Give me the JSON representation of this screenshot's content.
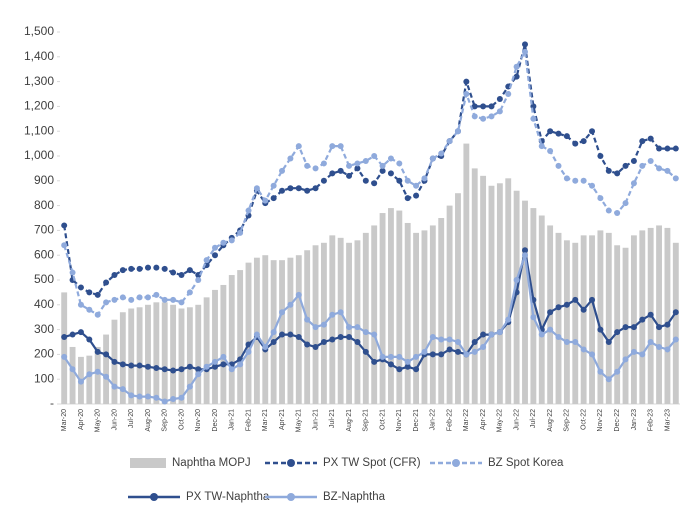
{
  "chart_data": {
    "type": "combo",
    "categories": [
      "Mar-20",
      null,
      "Apr-20",
      null,
      "May-20",
      null,
      "Jun-20",
      null,
      "Jul-20",
      null,
      "Aug-20",
      null,
      "Sep-20",
      null,
      "Oct-20",
      null,
      "Nov-20",
      null,
      "Dec-20",
      null,
      "Jan-21",
      null,
      "Feb-21",
      null,
      "Mar-21",
      null,
      "Apr-21",
      null,
      "May-21",
      null,
      "Jun-21",
      null,
      "Jul-21",
      null,
      "Aug-21",
      null,
      "Sep-21",
      null,
      "Oct-21",
      null,
      "Nov-21",
      null,
      "Dec-21",
      null,
      "Jan-22",
      null,
      "Feb-22",
      null,
      "Mar-22",
      null,
      "Apr-22",
      null,
      "May-22",
      null,
      "Jun-22",
      null,
      "Jul-22",
      null,
      "Aug-22",
      null,
      "Sep-22",
      null,
      "Oct-22",
      null,
      "Nov-22",
      null,
      "Dec-22",
      null,
      "Jan-23",
      null,
      "Feb-23",
      null,
      "Mar-23",
      null
    ],
    "series": [
      {
        "name": "Naphtha MOPJ",
        "type": "bar",
        "color": "#c9c9c9",
        "values": [
          450,
          230,
          190,
          195,
          230,
          280,
          340,
          370,
          385,
          390,
          400,
          410,
          410,
          400,
          385,
          390,
          400,
          430,
          460,
          480,
          520,
          540,
          570,
          590,
          600,
          580,
          580,
          590,
          600,
          620,
          640,
          650,
          680,
          670,
          650,
          660,
          690,
          720,
          770,
          790,
          780,
          730,
          690,
          700,
          720,
          750,
          800,
          850,
          1050,
          950,
          920,
          880,
          890,
          910,
          860,
          820,
          790,
          760,
          720,
          690,
          660,
          650,
          680,
          680,
          700,
          690,
          640,
          630,
          680,
          700,
          710,
          720,
          710,
          650
        ]
      },
      {
        "name": "PX TW Spot (CFR)",
        "type": "line",
        "dashed": true,
        "color": "#2f4f8e",
        "values": [
          720,
          500,
          470,
          450,
          440,
          490,
          520,
          540,
          545,
          545,
          550,
          550,
          545,
          530,
          520,
          540,
          520,
          560,
          600,
          640,
          670,
          700,
          760,
          860,
          810,
          830,
          860,
          870,
          870,
          860,
          870,
          900,
          930,
          940,
          920,
          950,
          900,
          890,
          940,
          930,
          900,
          830,
          840,
          900,
          990,
          1000,
          1060,
          1100,
          1300,
          1200,
          1200,
          1200,
          1230,
          1280,
          1320,
          1450,
          1200,
          1060,
          1100,
          1090,
          1080,
          1050,
          1060,
          1100,
          1000,
          940,
          930,
          960,
          980,
          1060,
          1070,
          1030,
          1030,
          1030
        ]
      },
      {
        "name": "BZ Spot Korea",
        "type": "line",
        "dashed": true,
        "color": "#8faadc",
        "values": [
          640,
          530,
          400,
          380,
          360,
          410,
          420,
          430,
          420,
          430,
          430,
          440,
          420,
          420,
          410,
          450,
          500,
          580,
          630,
          650,
          660,
          690,
          780,
          870,
          820,
          880,
          940,
          990,
          1040,
          960,
          950,
          970,
          1040,
          1040,
          960,
          970,
          980,
          1000,
          960,
          990,
          970,
          900,
          880,
          910,
          990,
          1010,
          1060,
          1100,
          1250,
          1160,
          1150,
          1160,
          1180,
          1250,
          1360,
          1420,
          1150,
          1040,
          1020,
          960,
          910,
          900,
          900,
          880,
          830,
          780,
          770,
          810,
          890,
          960,
          980,
          950,
          940,
          910
        ]
      },
      {
        "name": "PX TW-Naphtha",
        "type": "line",
        "dashed": false,
        "color": "#2f4f8e",
        "values": [
          270,
          280,
          290,
          260,
          210,
          200,
          170,
          160,
          155,
          155,
          150,
          145,
          140,
          135,
          140,
          150,
          140,
          140,
          150,
          160,
          160,
          180,
          240,
          270,
          220,
          250,
          280,
          280,
          270,
          240,
          230,
          250,
          260,
          270,
          270,
          250,
          210,
          170,
          180,
          160,
          140,
          150,
          140,
          200,
          200,
          200,
          220,
          210,
          200,
          250,
          280,
          280,
          290,
          330,
          450,
          620,
          420,
          300,
          370,
          390,
          400,
          420,
          380,
          420,
          300,
          250,
          290,
          310,
          310,
          340,
          360,
          310,
          320,
          370
        ]
      },
      {
        "name": "BZ-Naphtha",
        "type": "line",
        "dashed": false,
        "color": "#8faadc",
        "values": [
          190,
          140,
          90,
          120,
          130,
          110,
          70,
          60,
          35,
          30,
          30,
          25,
          10,
          20,
          25,
          70,
          120,
          150,
          170,
          190,
          140,
          160,
          210,
          280,
          230,
          290,
          370,
          400,
          440,
          340,
          310,
          320,
          360,
          370,
          310,
          310,
          290,
          280,
          190,
          190,
          190,
          170,
          190,
          210,
          270,
          260,
          260,
          250,
          200,
          210,
          230,
          280,
          290,
          340,
          500,
          600,
          350,
          280,
          300,
          270,
          250,
          250,
          220,
          200,
          130,
          100,
          130,
          180,
          210,
          200,
          250,
          230,
          220,
          260
        ]
      }
    ],
    "ylim": [
      0,
      1500
    ],
    "yticks": [
      {
        "value": 0,
        "label": "-"
      },
      100,
      200,
      300,
      400,
      500,
      600,
      700,
      800,
      900,
      {
        "value": 1000,
        "label": "1,000"
      },
      {
        "value": 1100,
        "label": "1,100"
      },
      {
        "value": 1200,
        "label": "1,200"
      },
      {
        "value": 1300,
        "label": "1,300"
      },
      {
        "value": 1400,
        "label": "1,400"
      },
      {
        "value": 1500,
        "label": "1,500"
      }
    ]
  }
}
